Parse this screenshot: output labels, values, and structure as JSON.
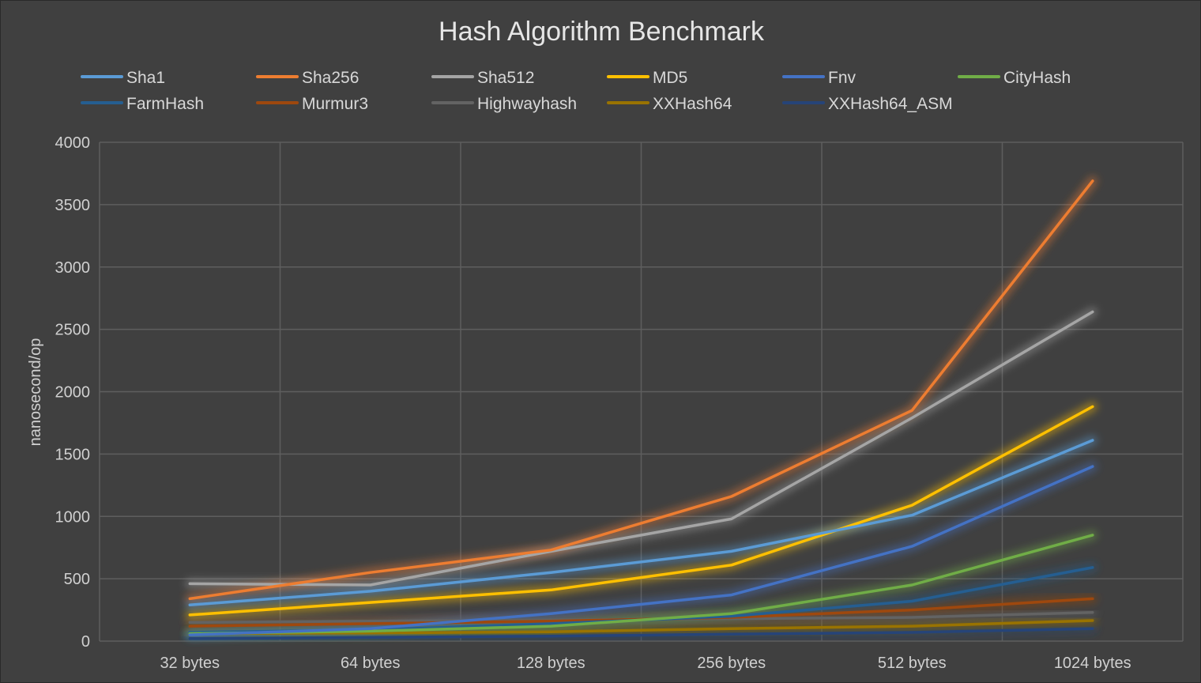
{
  "chart_data": {
    "type": "line",
    "title": "Hash Algorithm Benchmark",
    "xlabel": "",
    "ylabel": "nanosecond/op",
    "ylim": [
      0,
      4000
    ],
    "y_ticks": [
      0,
      500,
      1000,
      1500,
      2000,
      2500,
      3000,
      3500,
      4000
    ],
    "grid": true,
    "legend_position": "top",
    "categories": [
      "32 bytes",
      "64 bytes",
      "128 bytes",
      "256 bytes",
      "512 bytes",
      "1024 bytes"
    ],
    "series": [
      {
        "name": "Sha1",
        "color": "#5b9bd5",
        "values": [
          290,
          400,
          550,
          720,
          1010,
          1610
        ]
      },
      {
        "name": "Sha256",
        "color": "#ed7d31",
        "values": [
          340,
          550,
          730,
          1160,
          1850,
          3690
        ]
      },
      {
        "name": "Sha512",
        "color": "#a5a5a5",
        "values": [
          460,
          450,
          720,
          980,
          1790,
          2640
        ]
      },
      {
        "name": "MD5",
        "color": "#ffc000",
        "values": [
          210,
          310,
          410,
          610,
          1090,
          1880
        ]
      },
      {
        "name": "Fnv",
        "color": "#4472c4",
        "values": [
          50,
          100,
          220,
          370,
          760,
          1400
        ]
      },
      {
        "name": "CityHash",
        "color": "#70ad47",
        "values": [
          60,
          80,
          120,
          220,
          450,
          850
        ]
      },
      {
        "name": "FarmHash",
        "color": "#255e91",
        "values": [
          70,
          90,
          140,
          200,
          320,
          590
        ]
      },
      {
        "name": "Murmur3",
        "color": "#9e480e",
        "values": [
          120,
          140,
          160,
          190,
          250,
          340
        ]
      },
      {
        "name": "Highwayhash",
        "color": "#636363",
        "values": [
          150,
          160,
          170,
          180,
          190,
          230
        ]
      },
      {
        "name": "XXHash64",
        "color": "#997300",
        "values": [
          60,
          65,
          75,
          100,
          120,
          165
        ]
      },
      {
        "name": "XXHash64_ASM",
        "color": "#264478",
        "values": [
          20,
          30,
          40,
          55,
          70,
          100
        ]
      }
    ]
  }
}
